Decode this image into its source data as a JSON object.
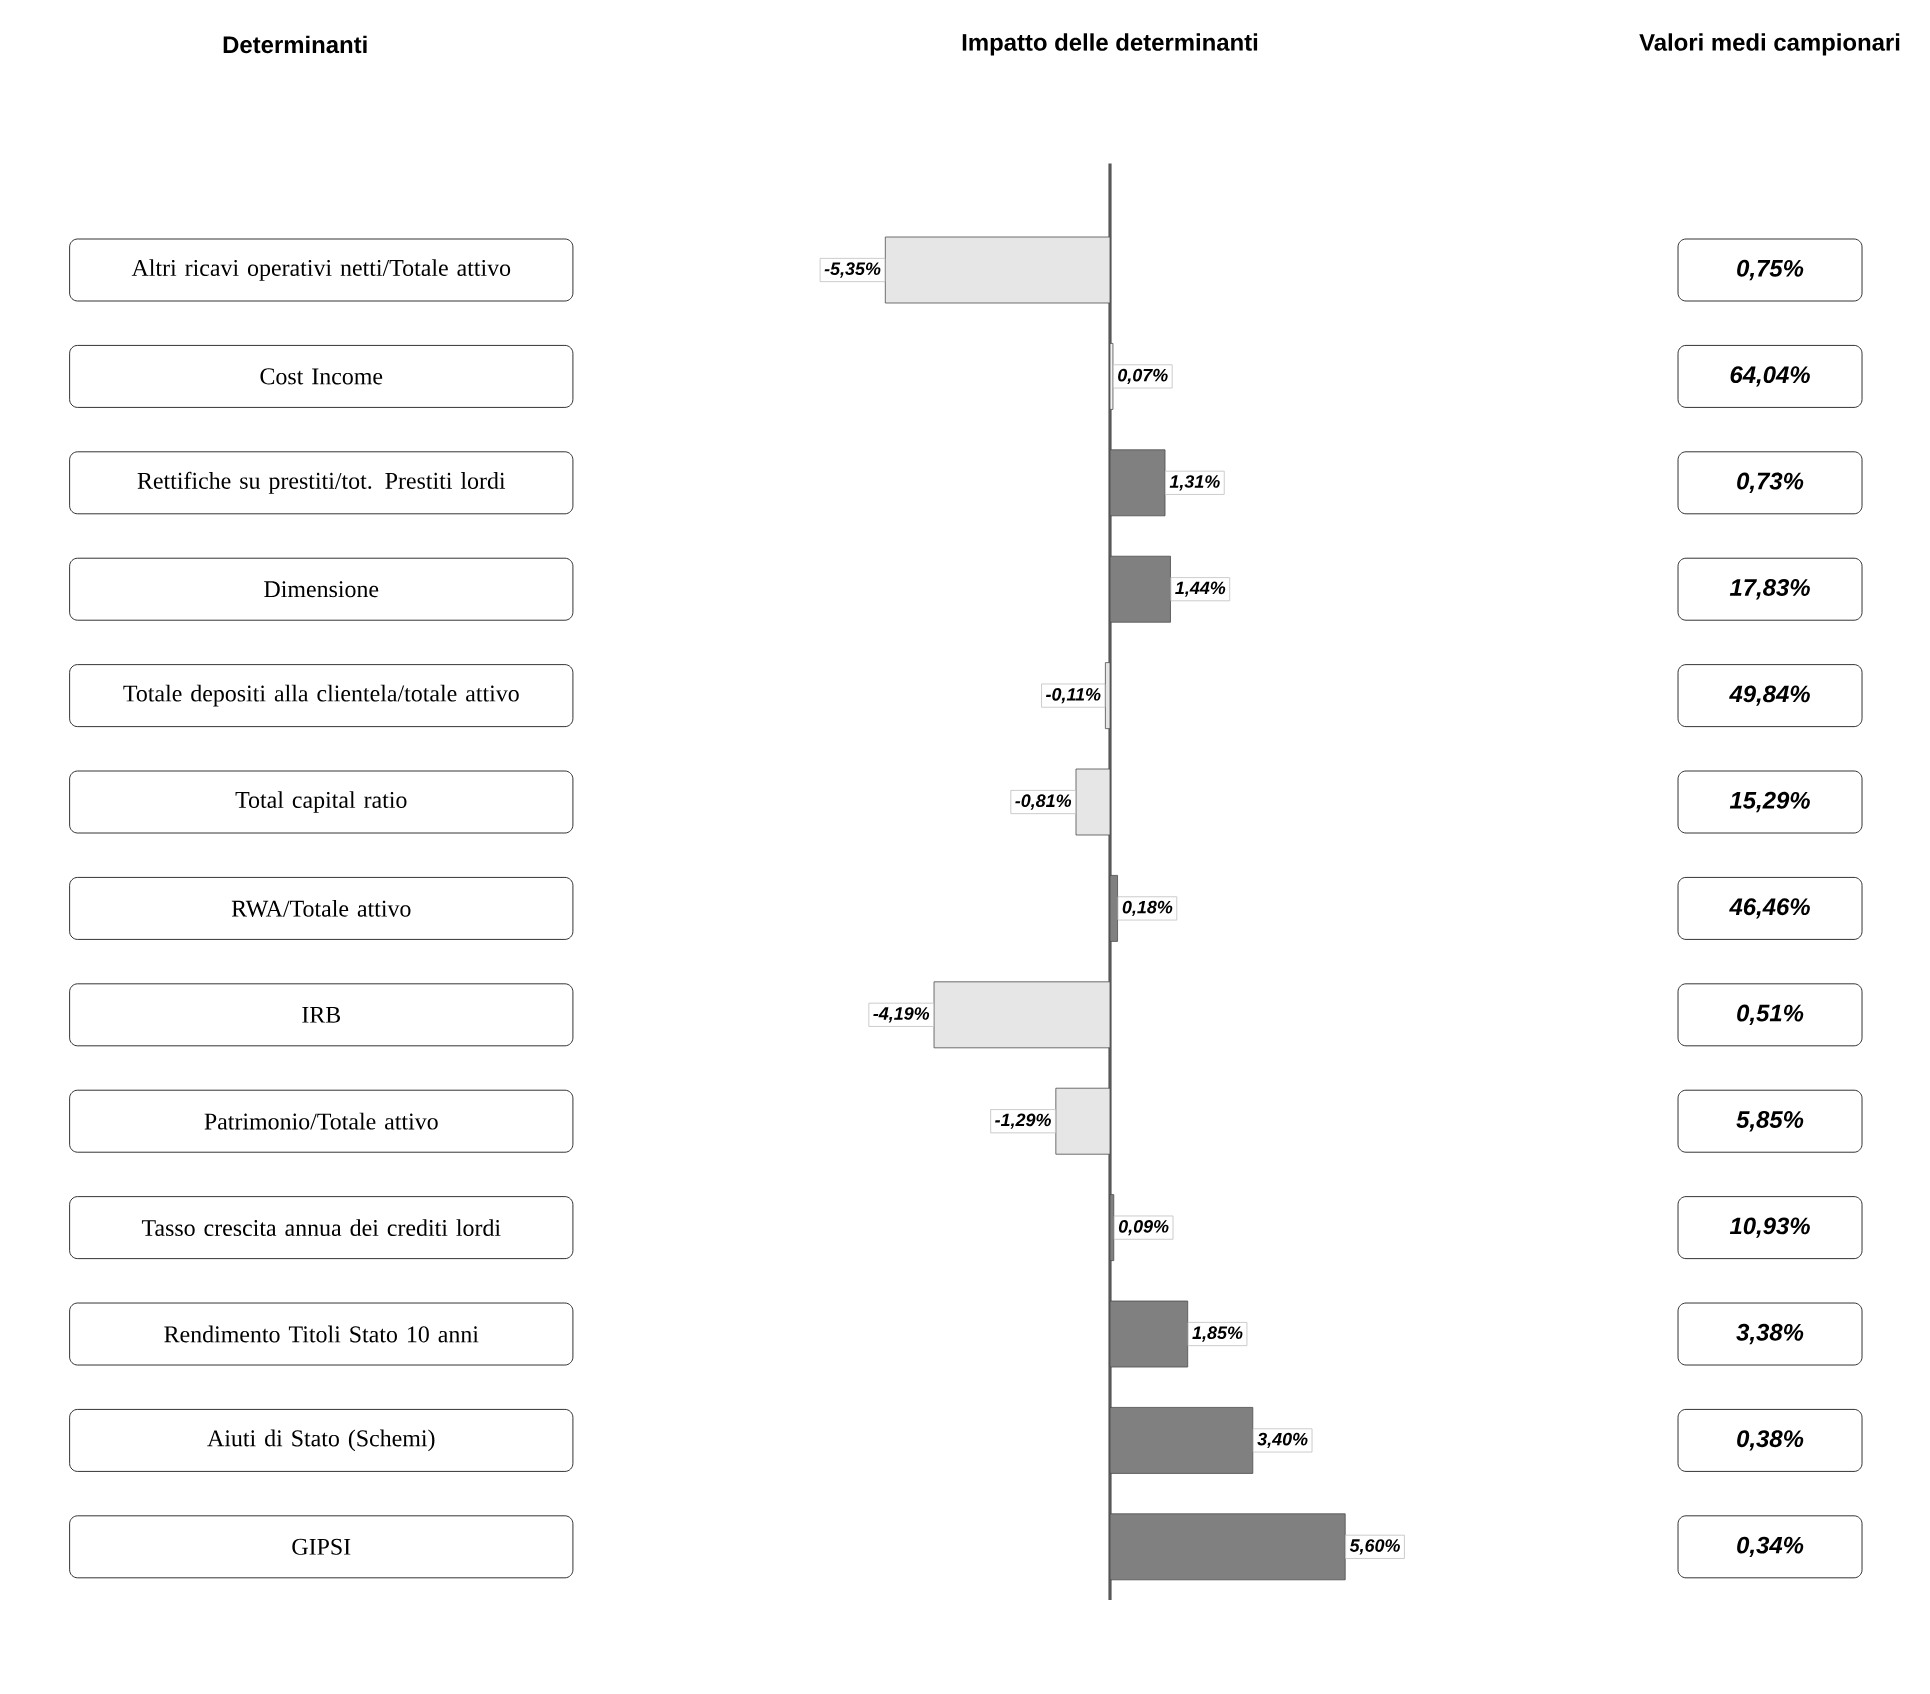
{
  "chart_data": [
    {
      "type": "bar",
      "orientation": "horizontal",
      "title": "Impatto delle determinanti",
      "ylabel": "Determinanti",
      "categories": [
        "Altri ricavi operativi netti/Totale attivo",
        "Cost Income",
        "Rettifiche su prestiti/tot. Prestiti lordi",
        "Dimensione",
        "Totale depositi alla clientela/totale attivo",
        "Total capital ratio",
        "RWA/Totale attivo",
        "IRB",
        "Patrimonio/Totale attivo",
        "Tasso crescita annua dei crediti lordi",
        "Rendimento Titoli Stato 10 anni",
        "Aiuti di Stato (Schemi)",
        "GIPSI"
      ],
      "values": [
        -5.35,
        0.07,
        1.31,
        1.44,
        -0.11,
        -0.81,
        0.18,
        -4.19,
        -1.29,
        0.09,
        1.85,
        3.4,
        5.6
      ],
      "value_labels": [
        "-5,35%",
        "0,07%",
        "1,31%",
        "1,44%",
        "-0,11%",
        "-0,81%",
        "0,18%",
        "-4,19%",
        "-1,29%",
        "0,09%",
        "1,85%",
        "3,40%",
        "5,60%"
      ],
      "colors": [
        "#e6e6e6",
        "#f2f2f2",
        "#808080",
        "#808080",
        "#e6e6e6",
        "#e6e6e6",
        "#808080",
        "#e6e6e6",
        "#e6e6e6",
        "#808080",
        "#808080",
        "#808080",
        "#808080"
      ]
    },
    {
      "type": "other",
      "title": "Valori medi campionari",
      "annotations": [
        "0,75%",
        "64,04%",
        "0,73%",
        "17,83%",
        "49,84%",
        "15,29%",
        "46,46%",
        "0,51%",
        "5,85%",
        "10,93%",
        "3,38%",
        "0,38%",
        "0,34%"
      ]
    }
  ]
}
